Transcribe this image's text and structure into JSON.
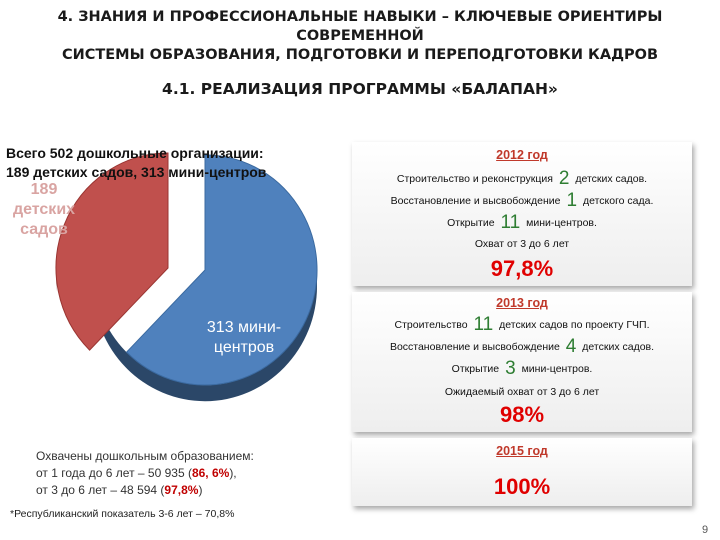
{
  "header": {
    "title_line1": "4. ЗНАНИЯ И ПРОФЕССИОНАЛЬНЫЕ НАВЫКИ – КЛЮЧЕВЫЕ ОРИЕНТИРЫ СОВРЕМЕННОЙ",
    "title_line2": "СИСТЕМЫ ОБРАЗОВАНИЯ, ПОДГОТОВКИ И ПЕРЕПОДГОТОВКИ КАДРОВ",
    "subtitle": "4.1. РЕАЛИЗАЦИЯ ПРОГРАММЫ «БАЛАПАН»"
  },
  "total": {
    "line1": "Всего 502 дошкольные организации:",
    "line2": "189 детских садов, 313 мини-центров"
  },
  "chart_data": {
    "type": "pie",
    "slices": [
      {
        "label": "189 детских садов",
        "value": 189,
        "color": "#c0504d"
      },
      {
        "label": "313 мини-центров",
        "value": 313,
        "color": "#4f81bd"
      }
    ],
    "label_lines": {
      "kindergartens": [
        "189",
        "детских",
        "садов"
      ],
      "minicenters": [
        "313 мини-",
        "центров"
      ]
    }
  },
  "panels": {
    "y2012": {
      "year": "2012 год",
      "row1": {
        "pre": "Строительство и реконструкция",
        "num": "2",
        "post": "детских садов."
      },
      "row2": {
        "pre": "Восстановление и высвобождение",
        "num": "1",
        "post": "детского сада."
      },
      "row3": {
        "pre": "Открытие",
        "num": "11",
        "post": "мини-центров."
      },
      "coverage": "Охват от 3 до 6 лет",
      "percent": "97,8%"
    },
    "y2013": {
      "year": "2013 год",
      "row1": {
        "pre": "Строительство",
        "num": "11",
        "post": "детских садов по  проекту ГЧП."
      },
      "row2": {
        "pre": "Восстановление и высвобождение",
        "num": "4",
        "post": "детских садов."
      },
      "row3": {
        "pre": "Открытие",
        "num": "3",
        "post": "мини-центров."
      },
      "coverage": "Ожидаемый охват от 3 до 6 лет",
      "percent": "98%"
    },
    "y2015": {
      "year": "2015 год",
      "percent": "100%"
    }
  },
  "coverage_note": {
    "line1": "Охвачены дошкольным образованием:",
    "line2_pre": "от 1 года до 6 лет – 50 935 (",
    "line2_val": "86, 6%",
    "line2_post": "),",
    "line3_pre": "от 3 до 6 лет – 48 594 (",
    "line3_val": "97,8%",
    "line3_post": ")"
  },
  "footnote": "*Республиканский показатель 3-6 лет  – 70,8%",
  "page_number": "9"
}
